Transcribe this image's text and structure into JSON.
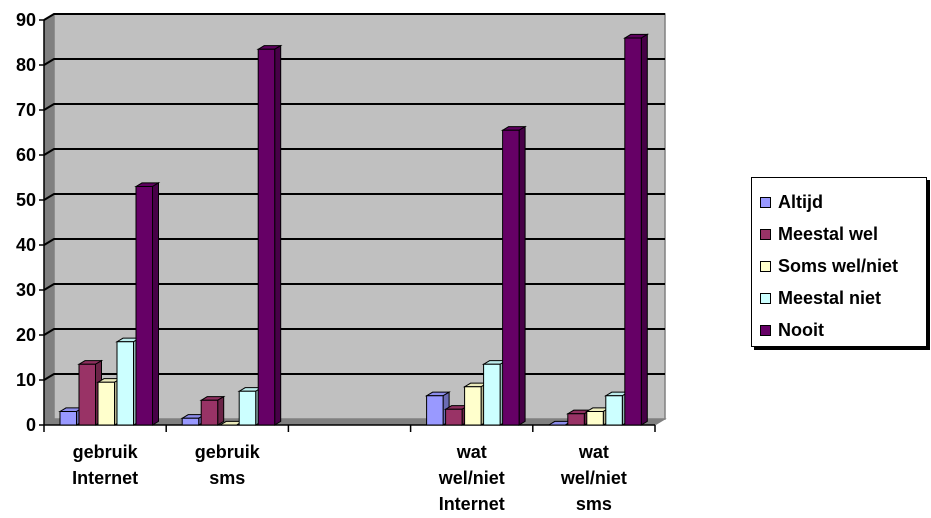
{
  "chart_data": {
    "type": "bar",
    "title": "",
    "xlabel": "",
    "ylabel": "",
    "ylim": [
      0,
      90
    ],
    "yticks": [
      0,
      10,
      20,
      30,
      40,
      50,
      60,
      70,
      80,
      90
    ],
    "grid": true,
    "legend_position": "right",
    "categories": [
      [
        "gebruik",
        "Internet"
      ],
      [
        "gebruik",
        "sms"
      ],
      [
        "",
        ""
      ],
      [
        "wat",
        "wel/niet",
        "Internet"
      ],
      [
        "wat",
        "wel/niet",
        "sms"
      ]
    ],
    "series": [
      {
        "name": "Altijd",
        "color": "#9999ff",
        "values": [
          3,
          1.5,
          null,
          6.5,
          0
        ]
      },
      {
        "name": "Meestal wel",
        "color": "#993366",
        "values": [
          13.5,
          5.5,
          null,
          3.5,
          2.5
        ]
      },
      {
        "name": "Soms wel/niet",
        "color": "#ffffcc",
        "values": [
          9.5,
          0,
          null,
          8.5,
          3
        ]
      },
      {
        "name": "Meestal niet",
        "color": "#ccffff",
        "values": [
          18.5,
          7.5,
          null,
          13.5,
          6.5
        ]
      },
      {
        "name": "Nooit",
        "color": "#660066",
        "values": [
          53,
          83.5,
          null,
          65.5,
          86
        ]
      }
    ]
  }
}
